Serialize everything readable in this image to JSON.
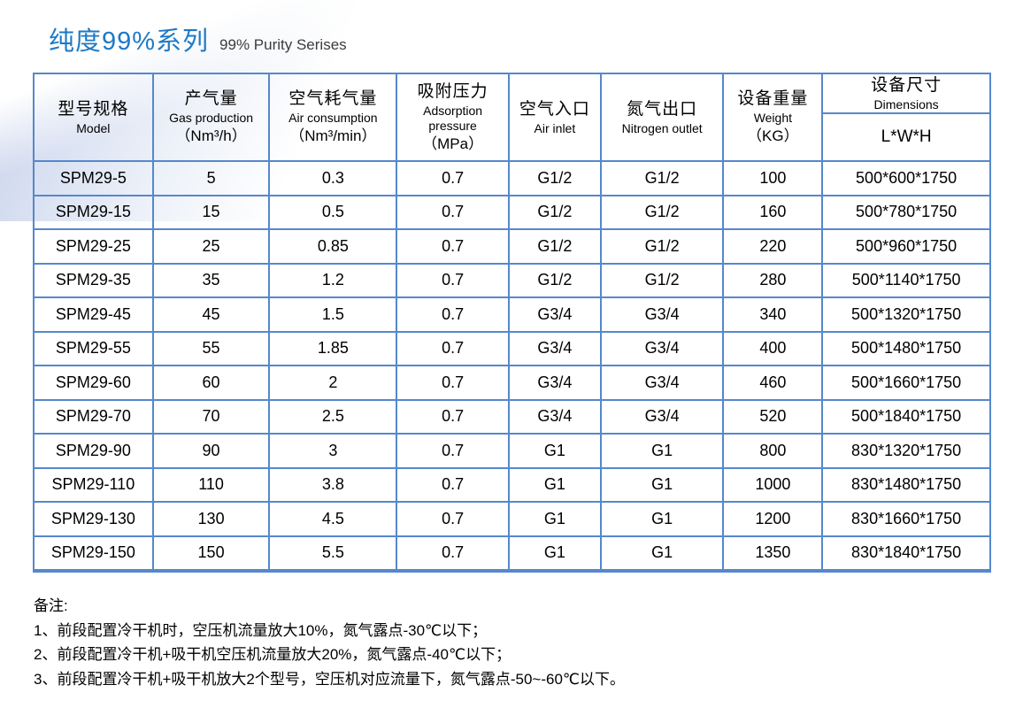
{
  "header": {
    "title_zh": "纯度99%系列",
    "title_en": "99% Purity Serises"
  },
  "colors": {
    "title_blue": "#1e79c6",
    "table_border": "#5588cc",
    "swoosh_tint": "#c4cfe9",
    "text": "#000000"
  },
  "table": {
    "columns": [
      {
        "zh": "型号规格",
        "en": "Model",
        "unit": ""
      },
      {
        "zh": "产气量",
        "en": "Gas production",
        "unit": "（Nm³/h）"
      },
      {
        "zh": "空气耗气量",
        "en": "Air consumption",
        "unit": "（Nm³/min）"
      },
      {
        "zh": "吸附压力",
        "en": "Adsorption pressure",
        "unit": "（MPa）"
      },
      {
        "zh": "空气入口",
        "en": "Air inlet",
        "unit": ""
      },
      {
        "zh": "氮气出口",
        "en": "Nitrogen outlet",
        "unit": ""
      },
      {
        "zh": "设备重量",
        "en": "Weight",
        "unit": "（KG）"
      },
      {
        "zh": "设备尺寸",
        "en": "Dimensions",
        "sub": "L*W*H"
      }
    ],
    "rows": [
      [
        "SPM29-5",
        "5",
        "0.3",
        "0.7",
        "G1/2",
        "G1/2",
        "100",
        "500*600*1750"
      ],
      [
        "SPM29-15",
        "15",
        "0.5",
        "0.7",
        "G1/2",
        "G1/2",
        "160",
        "500*780*1750"
      ],
      [
        "SPM29-25",
        "25",
        "0.85",
        "0.7",
        "G1/2",
        "G1/2",
        "220",
        "500*960*1750"
      ],
      [
        "SPM29-35",
        "35",
        "1.2",
        "0.7",
        "G1/2",
        "G1/2",
        "280",
        "500*1140*1750"
      ],
      [
        "SPM29-45",
        "45",
        "1.5",
        "0.7",
        "G3/4",
        "G3/4",
        "340",
        "500*1320*1750"
      ],
      [
        "SPM29-55",
        "55",
        "1.85",
        "0.7",
        "G3/4",
        "G3/4",
        "400",
        "500*1480*1750"
      ],
      [
        "SPM29-60",
        "60",
        "2",
        "0.7",
        "G3/4",
        "G3/4",
        "460",
        "500*1660*1750"
      ],
      [
        "SPM29-70",
        "70",
        "2.5",
        "0.7",
        "G3/4",
        "G3/4",
        "520",
        "500*1840*1750"
      ],
      [
        "SPM29-90",
        "90",
        "3",
        "0.7",
        "G1",
        "G1",
        "800",
        "830*1320*1750"
      ],
      [
        "SPM29-110",
        "110",
        "3.8",
        "0.7",
        "G1",
        "G1",
        "1000",
        "830*1480*1750"
      ],
      [
        "SPM29-130",
        "130",
        "4.5",
        "0.7",
        "G1",
        "G1",
        "1200",
        "830*1660*1750"
      ],
      [
        "SPM29-150",
        "150",
        "5.5",
        "0.7",
        "G1",
        "G1",
        "1350",
        "830*1840*1750"
      ]
    ]
  },
  "notes": {
    "title": "备注:",
    "items": [
      "1、前段配置冷干机时，空压机流量放大10%，氮气露点-30℃以下；",
      "2、前段配置冷干机+吸干机空压机流量放大20%，氮气露点-40℃以下；",
      "3、前段配置冷干机+吸干机放大2个型号，空压机对应流量下，氮气露点-50~-60℃以下。"
    ]
  }
}
